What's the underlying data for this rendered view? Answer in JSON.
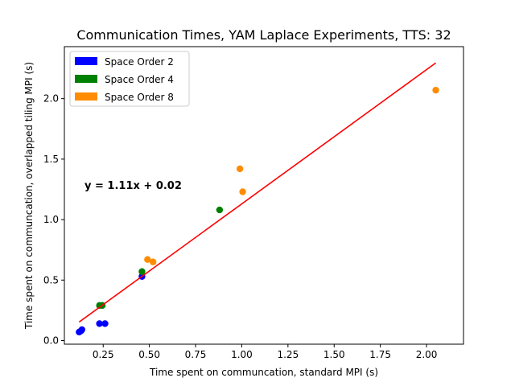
{
  "chart_data": {
    "type": "scatter",
    "title": "Communication Times, YAM Laplace Experiments, TTS: 32",
    "xlabel": "Time spent on communcation, standard MPI (s)",
    "ylabel": "Time spent on communcation, overlapped tiling MPI (s)",
    "xlim": [
      0.04,
      2.2
    ],
    "ylim": [
      -0.03,
      2.43
    ],
    "xticks": [
      0.25,
      0.5,
      0.75,
      1.0,
      1.25,
      1.5,
      1.75,
      2.0
    ],
    "xtick_labels": [
      "0.25",
      "0.50",
      "0.75",
      "1.00",
      "1.25",
      "1.50",
      "1.75",
      "2.00"
    ],
    "yticks": [
      0.0,
      0.5,
      1.0,
      1.5,
      2.0
    ],
    "ytick_labels": [
      "0.0",
      "0.5",
      "1.0",
      "1.5",
      "2.0"
    ],
    "grid": false,
    "legend_placement": "top-left",
    "series": [
      {
        "name": "Space Order 2",
        "color": "#0000ff",
        "points": [
          {
            "x": 0.12,
            "y": 0.07
          },
          {
            "x": 0.13,
            "y": 0.08
          },
          {
            "x": 0.135,
            "y": 0.09
          },
          {
            "x": 0.23,
            "y": 0.14
          },
          {
            "x": 0.26,
            "y": 0.14
          },
          {
            "x": 0.46,
            "y": 0.53
          }
        ]
      },
      {
        "name": "Space Order 4",
        "color": "#008000",
        "points": [
          {
            "x": 0.23,
            "y": 0.29
          },
          {
            "x": 0.245,
            "y": 0.29
          },
          {
            "x": 0.46,
            "y": 0.57
          },
          {
            "x": 0.88,
            "y": 1.08
          }
        ]
      },
      {
        "name": "Space Order 8",
        "color": "#ff8c00",
        "points": [
          {
            "x": 0.49,
            "y": 0.67
          },
          {
            "x": 0.52,
            "y": 0.65
          },
          {
            "x": 0.99,
            "y": 1.42
          },
          {
            "x": 1.005,
            "y": 1.23
          },
          {
            "x": 2.05,
            "y": 2.07
          }
        ]
      }
    ],
    "fit_line": {
      "slope": 1.11,
      "intercept": 0.02,
      "x_range": [
        0.12,
        2.05
      ],
      "color": "#ff0000"
    },
    "annotation": "y = 1.11x + 0.02"
  }
}
